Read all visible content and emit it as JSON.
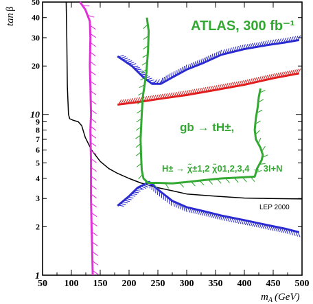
{
  "chart_data": {
    "type": "line",
    "title": "ATLAS, 300 fb⁻¹",
    "xlabel": "m",
    "xlabel_sub": "A",
    "xlabel_unit": "(GeV)",
    "ylabel": "tan",
    "ylabel_symbol": "β",
    "xlim": [
      50,
      500
    ],
    "ylim": [
      1,
      50
    ],
    "yscale": "log",
    "x_ticks": [
      {
        "value": 50,
        "label": "50"
      },
      {
        "value": 100,
        "label": "100"
      },
      {
        "value": 150,
        "label": "150"
      },
      {
        "value": 200,
        "label": "200"
      },
      {
        "value": 250,
        "label": "250"
      },
      {
        "value": 300,
        "label": "300"
      },
      {
        "value": 350,
        "label": "350"
      },
      {
        "value": 400,
        "label": "400"
      },
      {
        "value": 450,
        "label": "450"
      },
      {
        "value": 500,
        "label": "500"
      }
    ],
    "y_ticks": [
      {
        "value": 1,
        "label": "1",
        "size": "big"
      },
      {
        "value": 2,
        "label": "2",
        "size": "small"
      },
      {
        "value": 3,
        "label": "3",
        "size": "small"
      },
      {
        "value": 4,
        "label": "4",
        "size": "small"
      },
      {
        "value": 5,
        "label": "5",
        "size": "small"
      },
      {
        "value": 6,
        "label": "6",
        "size": "small"
      },
      {
        "value": 7,
        "label": "7",
        "size": "small"
      },
      {
        "value": 8,
        "label": "8",
        "size": "small"
      },
      {
        "value": 9,
        "label": "9",
        "size": "small"
      },
      {
        "value": 10,
        "label": "10",
        "size": "big"
      },
      {
        "value": 20,
        "label": "20",
        "size": "small"
      },
      {
        "value": 30,
        "label": "30",
        "size": "small"
      },
      {
        "value": 40,
        "label": "40",
        "size": "small"
      },
      {
        "value": 50,
        "label": "50",
        "size": "small"
      }
    ],
    "annotations": {
      "process": "gb → tH±,",
      "decay": "H± → χ̃±1,2 χ̃01,2,3,4 → 3l+N",
      "lep": "LEP 2000"
    },
    "series": [
      {
        "key": "lep",
        "color": "#000000",
        "hatched": false,
        "points": [
          [
            91,
            50
          ],
          [
            92,
            30
          ],
          [
            93,
            15
          ],
          [
            95,
            10
          ],
          [
            97,
            9.4
          ],
          [
            103,
            9.2
          ],
          [
            112,
            9.0
          ],
          [
            118,
            8.5
          ],
          [
            124,
            7.2
          ],
          [
            135,
            6.0
          ],
          [
            150,
            5.1
          ],
          [
            165,
            4.6
          ],
          [
            180,
            4.3
          ],
          [
            200,
            4.0
          ],
          [
            220,
            3.75
          ],
          [
            250,
            3.5
          ],
          [
            275,
            3.35
          ],
          [
            300,
            3.2
          ],
          [
            350,
            3.1
          ],
          [
            400,
            3.02
          ],
          [
            440,
            3.0
          ],
          [
            500,
            2.98
          ]
        ]
      },
      {
        "key": "magenta",
        "color": "#e030d8",
        "hatched": true,
        "hatch_side": -1,
        "points": [
          [
            115,
            50
          ],
          [
            124,
            45
          ],
          [
            132,
            38
          ],
          [
            133,
            30
          ],
          [
            132,
            20
          ],
          [
            133,
            15
          ],
          [
            134,
            10
          ],
          [
            133,
            8
          ],
          [
            134,
            5
          ],
          [
            134,
            3
          ],
          [
            135,
            2
          ],
          [
            136,
            1.5
          ],
          [
            137,
            1
          ]
        ]
      },
      {
        "key": "blue-upper",
        "color": "#2b2bd0",
        "hatched": true,
        "hatch_side": -1,
        "points": [
          [
            180,
            23
          ],
          [
            205,
            20
          ],
          [
            225,
            17
          ],
          [
            240,
            15.5
          ],
          [
            255,
            15.5
          ],
          [
            275,
            17
          ],
          [
            300,
            19
          ],
          [
            330,
            21
          ],
          [
            360,
            23.5
          ],
          [
            400,
            25.5
          ],
          [
            440,
            27
          ],
          [
            470,
            28
          ],
          [
            495,
            29
          ]
        ]
      },
      {
        "key": "blue-lower",
        "color": "#2b2bd0",
        "hatched": true,
        "hatch_side": 1,
        "points": [
          [
            180,
            2.7
          ],
          [
            200,
            3.1
          ],
          [
            215,
            3.5
          ],
          [
            235,
            3.8
          ],
          [
            255,
            3.3
          ],
          [
            275,
            2.9
          ],
          [
            300,
            2.65
          ],
          [
            330,
            2.5
          ],
          [
            360,
            2.35
          ],
          [
            400,
            2.2
          ],
          [
            440,
            2.05
          ],
          [
            470,
            1.95
          ],
          [
            495,
            1.85
          ]
        ]
      },
      {
        "key": "red",
        "color": "#e02020",
        "hatched": true,
        "hatch_side": -1,
        "points": [
          [
            180,
            11.5
          ],
          [
            220,
            12.0
          ],
          [
            260,
            12.6
          ],
          [
            300,
            13.2
          ],
          [
            350,
            14.2
          ],
          [
            400,
            15.3
          ],
          [
            450,
            16.8
          ],
          [
            495,
            18.0
          ]
        ]
      },
      {
        "key": "green",
        "color": "#33a832",
        "hatched": true,
        "hatch_side": 1,
        "points": [
          [
            231,
            40
          ],
          [
            234,
            33
          ],
          [
            233,
            25
          ],
          [
            230,
            18
          ],
          [
            224,
            13
          ],
          [
            222,
            10
          ],
          [
            220,
            7
          ],
          [
            221,
            5.5
          ],
          [
            222,
            4.5
          ],
          [
            225,
            4.0
          ],
          [
            233,
            3.75
          ],
          [
            250,
            3.75
          ],
          [
            275,
            3.72
          ],
          [
            300,
            3.8
          ],
          [
            330,
            3.9
          ],
          [
            360,
            4.0
          ],
          [
            390,
            4.05
          ],
          [
            418,
            4.1
          ],
          [
            422,
            4.6
          ],
          [
            430,
            5.2
          ],
          [
            432,
            5.6
          ],
          [
            428,
            6.2
          ],
          [
            420,
            7.0
          ],
          [
            418,
            8
          ],
          [
            420,
            9.5
          ],
          [
            423,
            11
          ],
          [
            425,
            12.8
          ],
          [
            428,
            14.5
          ]
        ]
      }
    ]
  }
}
